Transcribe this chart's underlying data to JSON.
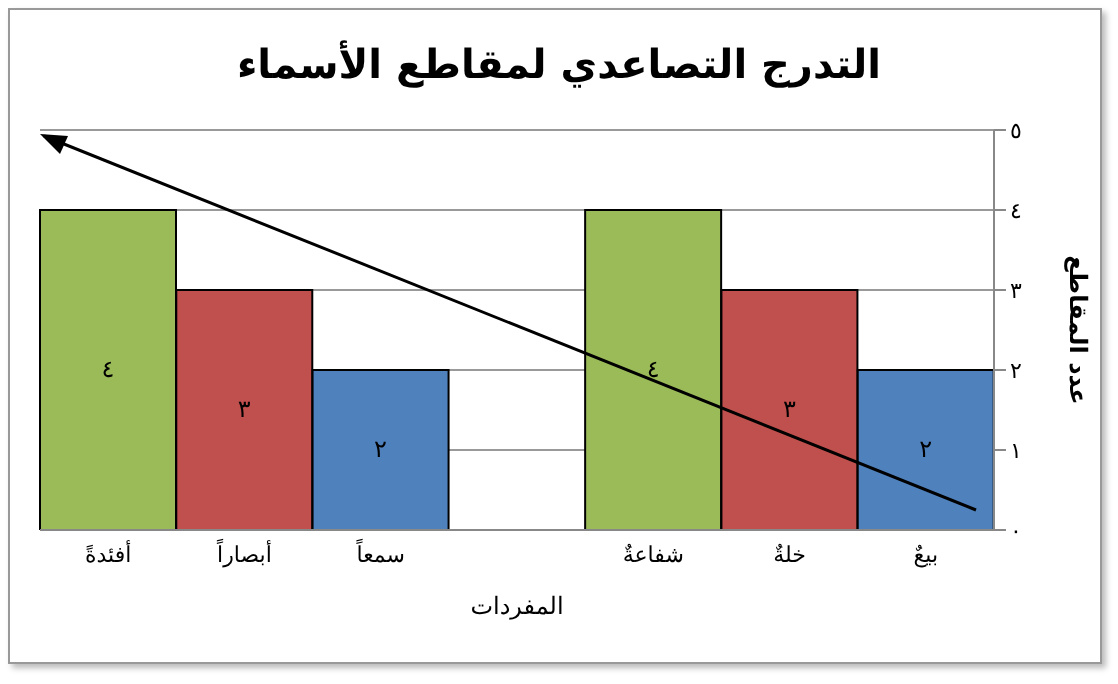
{
  "chart_data": {
    "type": "bar",
    "title": "التدرج التصاعدي لمقاطع الأسماء",
    "xlabel": "المفردات",
    "ylabel": "عدد المقاطع",
    "categories": [
      "أفئدةً",
      "أبصاراً",
      "سمعاً",
      null,
      "شفاعةٌ",
      "خلةٌ",
      "بيعٌ"
    ],
    "values": [
      4,
      3,
      2,
      null,
      4,
      3,
      2
    ],
    "colors": [
      "#9bbb59",
      "#c0504d",
      "#4f81bd",
      null,
      "#9bbb59",
      "#c0504d",
      "#4f81bd"
    ],
    "value_labels": [
      "٤",
      "٣",
      "٢",
      null,
      "٤",
      "٣",
      "٢"
    ],
    "ylim": [
      0,
      5
    ],
    "yticks": [
      {
        "value": 0,
        "label": "٠"
      },
      {
        "value": 1,
        "label": "١"
      },
      {
        "value": 2,
        "label": "٢"
      },
      {
        "value": 3,
        "label": "٣"
      },
      {
        "value": 4,
        "label": "٤"
      },
      {
        "value": 5,
        "label": "٥"
      }
    ],
    "grid": "y"
  }
}
